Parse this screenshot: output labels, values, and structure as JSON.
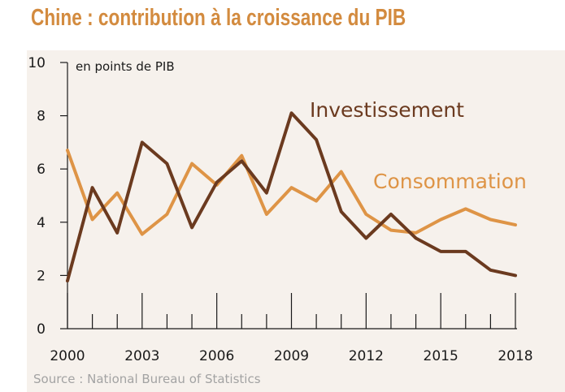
{
  "title": "Chine : contribution à la croissance du PIB",
  "source": "Source : National Bureau of Statistics",
  "colors": {
    "title": "#d38b3f",
    "panel_background": "#f6f1ec",
    "axis": "#1a1a1a",
    "source_text": "#a3a3a3"
  },
  "chart_data": {
    "type": "line",
    "title": "Chine : contribution à la croissance du PIB",
    "ylabel": "en points de PIB",
    "xlabel": "",
    "ylim": [
      0,
      10
    ],
    "xlim": [
      2000,
      2018
    ],
    "yticks": [
      0,
      2,
      4,
      6,
      8,
      10
    ],
    "xtick_labels": [
      "2000",
      "2003",
      "2006",
      "2009",
      "2012",
      "2015",
      "2018"
    ],
    "grid": false,
    "legend": "inline labels",
    "x": [
      2000,
      2001,
      2002,
      2003,
      2004,
      2005,
      2006,
      2007,
      2008,
      2009,
      2010,
      2011,
      2012,
      2013,
      2014,
      2015,
      2016,
      2017,
      2018
    ],
    "series": [
      {
        "name": "Consommation",
        "color": "#de9446",
        "values": [
          6.7,
          4.1,
          5.1,
          3.55,
          4.3,
          6.2,
          5.4,
          6.5,
          4.3,
          5.3,
          4.8,
          5.9,
          4.3,
          3.7,
          3.6,
          4.1,
          4.5,
          4.1,
          3.9
        ]
      },
      {
        "name": "Investissement",
        "color": "#6b3a1f",
        "values": [
          1.8,
          5.3,
          3.6,
          7.0,
          6.2,
          3.8,
          5.5,
          6.3,
          5.1,
          8.1,
          7.1,
          4.4,
          3.4,
          4.3,
          3.4,
          2.9,
          2.9,
          2.2,
          2.0
        ]
      }
    ]
  }
}
